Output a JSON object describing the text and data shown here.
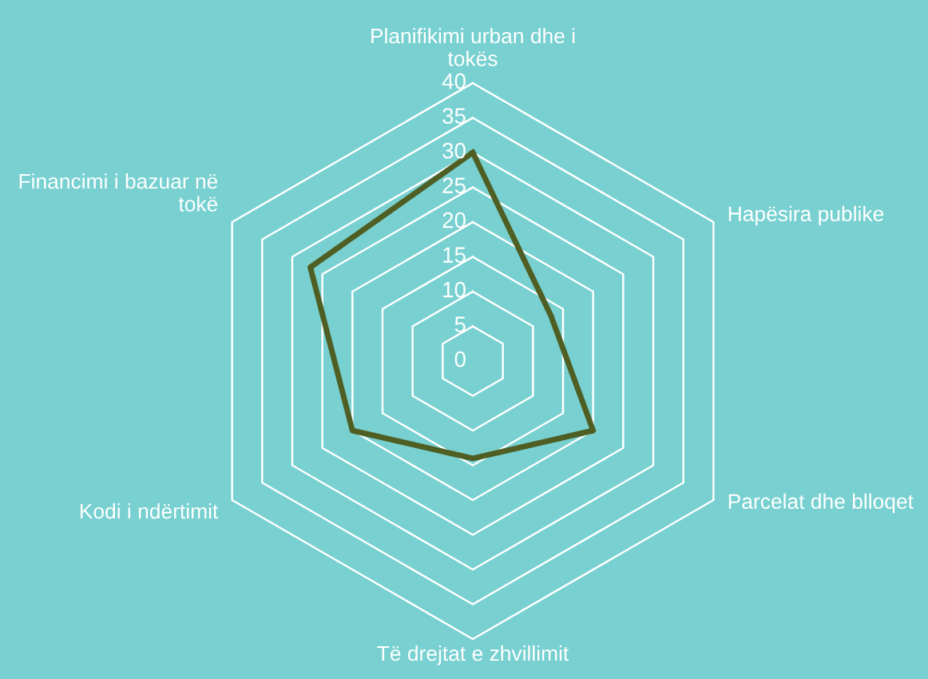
{
  "chart_data": {
    "type": "radar",
    "categories": [
      "Planifikimi urban dhe i tokës",
      "Hapësira publike",
      "Parcelat dhe blloqet",
      "Të drejtat e zhvillimit",
      "Kodi i ndërtimit",
      "Financimi i bazuar në tokë"
    ],
    "series": [
      {
        "color": "#4f5e23",
        "values": [
          30,
          13,
          20,
          14,
          20,
          27
        ]
      }
    ],
    "ylim": [
      0,
      40
    ],
    "yticks": [
      0,
      5,
      10,
      15,
      20,
      25,
      30,
      35,
      40
    ],
    "grid": true,
    "legend": false,
    "marker": "none",
    "line_style": "solid"
  }
}
